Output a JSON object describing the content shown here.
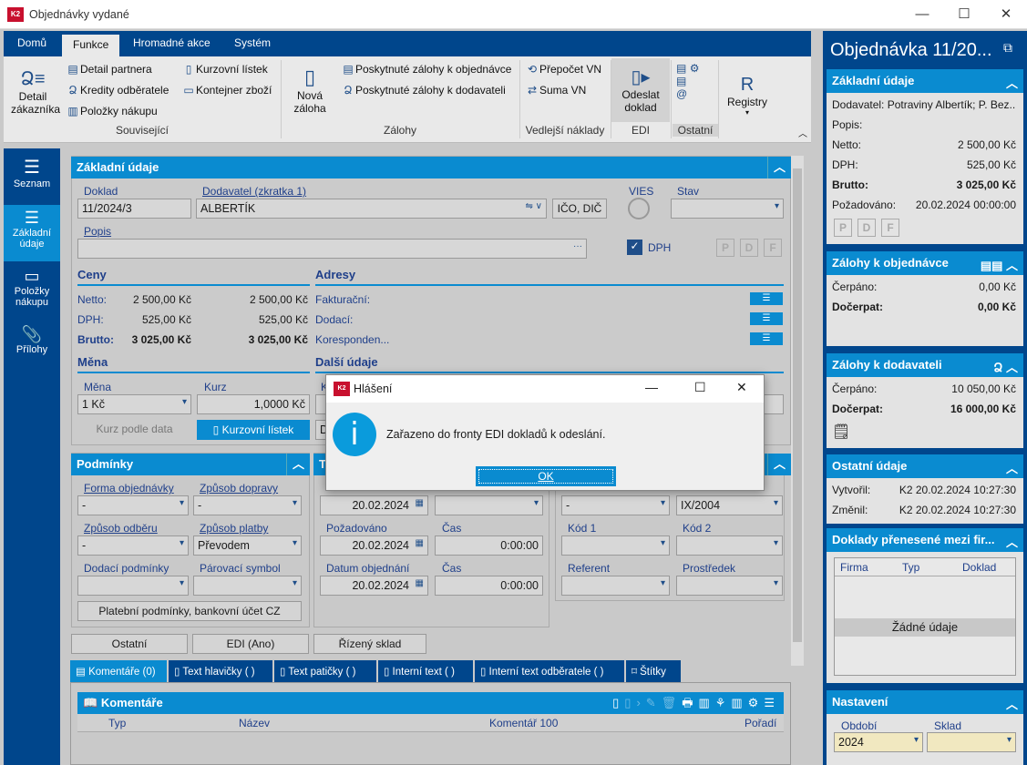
{
  "window": {
    "title": "Objednávky vydané",
    "logo": "K2"
  },
  "ribbon": {
    "tabs": [
      "Domů",
      "Funkce",
      "Hromadné akce",
      "Systém"
    ],
    "souvisejici": {
      "detail_zakaznika": "Detail zákazníka",
      "detail_partnera": "Detail partnera",
      "kredity": "Kredity odběratele",
      "polozky": "Položky nákupu",
      "kurzovni": "Kurzovní lístek",
      "kontejner": "Kontejner zboží",
      "group": "Související"
    },
    "zalohy": {
      "nova": "Nová záloha",
      "k_objednavce": "Poskytnuté zálohy k objednávce",
      "k_dodavateli": "Poskytnuté zálohy k dodavateli",
      "group": "Zálohy"
    },
    "vedlejsi": {
      "prepocet": "Přepočet VN",
      "suma": "Suma VN",
      "group": "Vedlejší náklady"
    },
    "edi": {
      "odeslat": "Odeslat doklad",
      "group": "EDI"
    },
    "ostatni": {
      "group": "Ostatní"
    },
    "registry": {
      "label": "Registry"
    }
  },
  "leftnav": [
    {
      "label": "Seznam"
    },
    {
      "label": "Základní údaje"
    },
    {
      "label": "Položky nákupu"
    },
    {
      "label": "Přílohy"
    }
  ],
  "zakladni": {
    "title": "Základní údaje",
    "doklad_label": "Doklad",
    "doklad": "11/2024/3",
    "dodavatel_label": "Dodavatel (zkratka 1)",
    "dodavatel": "ALBERTÍK",
    "ico_btn": "IČO, DIČ",
    "vies": "VIES",
    "stav": "Stav",
    "popis": "Popis",
    "dph": "DPH",
    "pdf": [
      "P",
      "D",
      "F"
    ],
    "ceny": {
      "title": "Ceny",
      "rows": [
        {
          "label": "Netto:",
          "a": "2 500,00 Kč",
          "b": "2 500,00 Kč"
        },
        {
          "label": "DPH:",
          "a": "525,00 Kč",
          "b": "525,00 Kč"
        },
        {
          "label": "Brutto:",
          "a": "3 025,00 Kč",
          "b": "3 025,00 Kč"
        }
      ]
    },
    "adresy": {
      "title": "Adresy",
      "rows": [
        "Fakturační:",
        "Dodací:",
        "Koresponden..."
      ]
    },
    "mena": {
      "title": "Měna",
      "mena_label": "Měna",
      "mena": "1 Kč",
      "kurz_label": "Kurz",
      "kurz": "1,0000 Kč",
      "kurz_btn": "Kurz podle data",
      "listek_btn": "Kurzovní lístek"
    },
    "dalsi": {
      "title": "Další údaje",
      "k": "K",
      "da": "Da"
    }
  },
  "podminky": {
    "title": "Podmínky",
    "forma_label": "Forma objednávky",
    "forma": "-",
    "doprava_label": "Způsob dopravy",
    "doprava": "-",
    "odber_label": "Způsob odběru",
    "odber": "-",
    "platba_label": "Způsob platby",
    "platba": "Převodem",
    "dodaci_label": "Dodací podmínky",
    "parovaci_label": "Párovací symbol",
    "btn": "Platební podmínky, bankovní účet CZ"
  },
  "terminy": {
    "title": "Te",
    "datum_vyst": "20.02.2024",
    "pozadovano_label": "Požadováno",
    "pozadovano": "20.02.2024",
    "cas_label": "Čas",
    "cas1": "0:00:00",
    "datum_obj_label": "Datum objednání",
    "datum_obj": "20.02.2024",
    "cas2": "0:00:00"
  },
  "dalsi2": {
    "stredisko": "-",
    "zakazka": "IX/2004",
    "kod1": "Kód 1",
    "kod2": "Kód 2",
    "referent": "Referent",
    "prostredek": "Prostředek"
  },
  "bottom_buttons": [
    "Ostatní",
    "EDI (Ano)",
    "Řízený sklad"
  ],
  "tabs": [
    "Komentáře (0)",
    "Text hlavičky ( )",
    "Text patičky ( )",
    "Interní text ( )",
    "Interní text odběratele ( )",
    "Štítky"
  ],
  "komentare": {
    "title": "Komentáře",
    "columns": [
      "Typ",
      "Název",
      "Komentář 100",
      "Pořadí"
    ]
  },
  "right": {
    "title": "Objednávka 11/20...",
    "zakladni": {
      "title": "Základní údaje",
      "dodavatel": "Dodavatel: Potraviny Albertík; P. Bez...",
      "popis": "Popis:",
      "netto_l": "Netto:",
      "netto": "2 500,00 Kč",
      "dph_l": "DPH:",
      "dph": "525,00 Kč",
      "brutto_l": "Brutto:",
      "brutto": "3 025,00 Kč",
      "poz_l": "Požadováno:",
      "poz": "20.02.2024 00:00:00"
    },
    "zal_obj": {
      "title": "Zálohy k objednávce",
      "cerpano_l": "Čerpáno:",
      "cerpano": "0,00 Kč",
      "docerpat_l": "Dočerpat:",
      "docerpat": "0,00 Kč"
    },
    "zal_dod": {
      "title": "Zálohy k dodavateli",
      "cerpano_l": "Čerpáno:",
      "cerpano": "10 050,00 Kč",
      "docerpat_l": "Dočerpat:",
      "docerpat": "16 000,00 Kč"
    },
    "ostatni": {
      "title": "Ostatní údaje",
      "vytvoril_l": "Vytvořil:",
      "vytvoril": "K2 20.02.2024 10:27:30",
      "zmenil_l": "Změnil:",
      "zmenil": "K2 20.02.2024 10:27:30"
    },
    "doklady": {
      "title": "Doklady přenesené mezi fir...",
      "cols": [
        "Firma",
        "Typ",
        "Doklad"
      ],
      "empty": "Žádné údaje"
    },
    "nastaveni": {
      "title": "Nastavení",
      "obdobi_l": "Období",
      "obdobi": "2024",
      "sklad_l": "Sklad"
    }
  },
  "dialog": {
    "title": "Hlášení",
    "message": "Zařazeno do fronty EDI dokladů k odeslání.",
    "ok": "OK"
  }
}
